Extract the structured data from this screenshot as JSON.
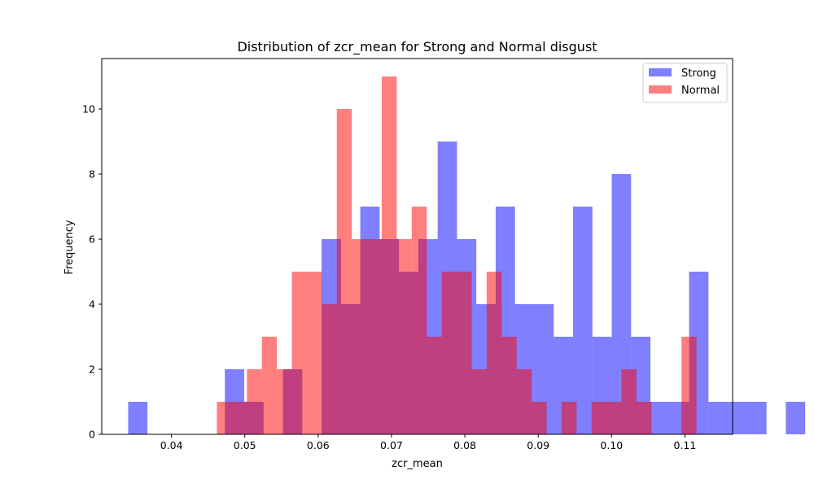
{
  "chart_data": {
    "type": "histogram",
    "title": "Distribution of zcr_mean for Strong and Normal disgust",
    "xlabel": "zcr_mean",
    "ylabel": "Frequency",
    "xlim": [
      0.0305,
      0.1165
    ],
    "ylim": [
      0,
      11.55
    ],
    "xticks": [
      0.04,
      0.05,
      0.06,
      0.07,
      0.08,
      0.09,
      0.1,
      0.11
    ],
    "xtick_labels": [
      "0.04",
      "0.05",
      "0.06",
      "0.07",
      "0.08",
      "0.09",
      "0.10",
      "0.11"
    ],
    "yticks": [
      0,
      2,
      4,
      6,
      8,
      10
    ],
    "ytick_labels": [
      "0",
      "2",
      "4",
      "6",
      "8",
      "10"
    ],
    "legend_position": "top-right",
    "series": [
      {
        "name": "Strong",
        "color": "#0000ff",
        "alpha": 0.5,
        "bin_start": 0.0341,
        "bin_width": 0.002637,
        "counts": [
          1,
          0,
          0,
          0,
          0,
          2,
          1,
          0,
          2,
          0,
          6,
          4,
          7,
          6,
          5,
          6,
          9,
          6,
          4,
          7,
          4,
          4,
          3,
          7,
          3,
          8,
          3,
          1,
          1,
          5,
          1,
          1,
          1,
          0,
          1
        ]
      },
      {
        "name": "Normal",
        "color": "#ff0000",
        "alpha": 0.5,
        "bin_start": 0.0462,
        "bin_width": 0.002043,
        "counts": [
          1,
          1,
          2,
          3,
          2,
          5,
          5,
          4,
          10,
          6,
          6,
          11,
          6,
          7,
          3,
          5,
          5,
          2,
          5,
          3,
          2,
          1,
          0,
          1,
          0,
          1,
          1,
          2,
          1,
          0,
          0,
          3
        ]
      }
    ]
  }
}
